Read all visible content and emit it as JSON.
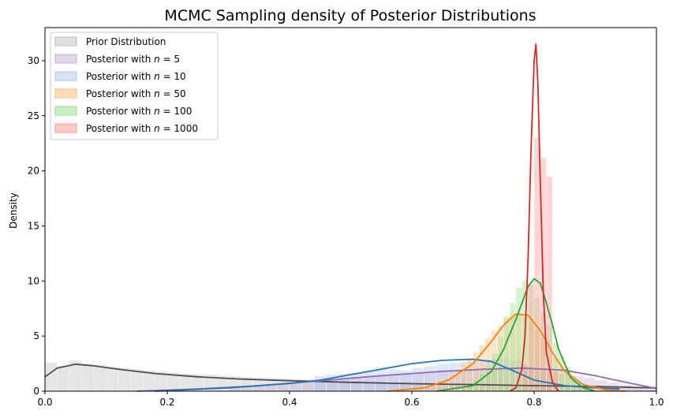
{
  "chart_data": {
    "type": "area",
    "title": "MCMC Sampling density of Posterior Distributions",
    "xlabel": "",
    "ylabel": "Density",
    "xlim": [
      0.0,
      1.0
    ],
    "ylim": [
      0,
      33
    ],
    "xticks": [
      "0.0",
      "0.2",
      "0.4",
      "0.6",
      "0.8",
      "1.0"
    ],
    "yticks": [
      "0",
      "5",
      "10",
      "15",
      "20",
      "25",
      "30"
    ],
    "legend_position": "top-left",
    "grid": false,
    "series": [
      {
        "name": "Prior Distribution",
        "color": "#4d4d4d",
        "hist_color": "#bfbfbf",
        "kde": [
          [
            0.0,
            1.3
          ],
          [
            0.02,
            2.1
          ],
          [
            0.05,
            2.45
          ],
          [
            0.08,
            2.3
          ],
          [
            0.12,
            2.0
          ],
          [
            0.18,
            1.6
          ],
          [
            0.25,
            1.3
          ],
          [
            0.32,
            1.1
          ],
          [
            0.4,
            0.95
          ],
          [
            0.5,
            0.8
          ],
          [
            0.6,
            0.68
          ],
          [
            0.7,
            0.6
          ],
          [
            0.8,
            0.5
          ],
          [
            0.9,
            0.42
          ],
          [
            1.0,
            0.3
          ]
        ],
        "hist": {
          "start": 0.0,
          "end": 1.0,
          "bins": 50,
          "heights": [
            2.6,
            2.3,
            2.8,
            2.5,
            2.4,
            2.2,
            2.1,
            2.0,
            1.9,
            1.8,
            1.7,
            1.6,
            1.55,
            1.5,
            1.4,
            1.35,
            1.3,
            1.25,
            1.2,
            1.15,
            1.1,
            1.05,
            1.0,
            0.98,
            0.95,
            0.92,
            0.9,
            0.87,
            0.85,
            0.82,
            0.8,
            0.78,
            0.76,
            0.74,
            0.72,
            0.7,
            0.68,
            0.66,
            0.64,
            0.62,
            0.6,
            0.58,
            0.56,
            0.54,
            0.52,
            0.5,
            0.48,
            0.45,
            0.4,
            0.35
          ]
        }
      },
      {
        "name": "Posterior with n = 5",
        "label_parts": [
          "Posterior with ",
          "n",
          " = 5"
        ],
        "color": "#9467bd",
        "hist_color": "#c5b0d5",
        "kde": [
          [
            0.15,
            0.0
          ],
          [
            0.25,
            0.2
          ],
          [
            0.35,
            0.5
          ],
          [
            0.45,
            0.95
          ],
          [
            0.55,
            1.4
          ],
          [
            0.65,
            1.8
          ],
          [
            0.72,
            2.0
          ],
          [
            0.78,
            2.1
          ],
          [
            0.85,
            1.9
          ],
          [
            0.9,
            1.4
          ],
          [
            0.95,
            0.8
          ],
          [
            1.0,
            0.25
          ]
        ],
        "hist": {
          "start": 0.3,
          "end": 1.0,
          "bins": 35,
          "heights": [
            0.3,
            0.4,
            0.5,
            0.55,
            0.7,
            0.8,
            0.9,
            0.95,
            1.1,
            1.2,
            1.3,
            1.35,
            1.4,
            1.5,
            1.6,
            1.7,
            1.8,
            1.9,
            1.95,
            2.0,
            2.1,
            2.05,
            2.1,
            2.15,
            2.0,
            1.9,
            1.8,
            1.6,
            1.4,
            1.2,
            1.0,
            0.8,
            0.6,
            0.4,
            0.2
          ]
        }
      },
      {
        "name": "Posterior with n = 10",
        "label_parts": [
          "Posterior with ",
          "n",
          " = 10"
        ],
        "color": "#1f77b4",
        "hist_color": "#aec7e8",
        "kde": [
          [
            0.18,
            0.0
          ],
          [
            0.3,
            0.3
          ],
          [
            0.4,
            0.7
          ],
          [
            0.45,
            1.0
          ],
          [
            0.5,
            1.5
          ],
          [
            0.55,
            2.0
          ],
          [
            0.6,
            2.5
          ],
          [
            0.65,
            2.8
          ],
          [
            0.7,
            2.9
          ],
          [
            0.73,
            2.7
          ],
          [
            0.76,
            2.0
          ],
          [
            0.8,
            1.0
          ],
          [
            0.85,
            0.5
          ],
          [
            0.9,
            0.3
          ],
          [
            0.94,
            0.2
          ]
        ],
        "hist": {
          "start": 0.44,
          "end": 0.94,
          "bins": 25,
          "heights": [
            1.4,
            1.5,
            1.6,
            1.7,
            1.8,
            2.2,
            2.0,
            1.9,
            2.1,
            2.3,
            2.5,
            2.6,
            2.7,
            2.8,
            2.9,
            3.0,
            2.8,
            2.2,
            1.5,
            0.9,
            0.6,
            0.4,
            0.3,
            0.25,
            0.2
          ]
        }
      },
      {
        "name": "Posterior with n = 50",
        "label_parts": [
          "Posterior with ",
          "n",
          " = 50"
        ],
        "color": "#ff7f0e",
        "hist_color": "#ffbb78",
        "kde": [
          [
            0.56,
            0.0
          ],
          [
            0.62,
            0.3
          ],
          [
            0.66,
            1.0
          ],
          [
            0.7,
            2.5
          ],
          [
            0.73,
            4.5
          ],
          [
            0.75,
            6.0
          ],
          [
            0.77,
            7.0
          ],
          [
            0.79,
            6.9
          ],
          [
            0.81,
            5.5
          ],
          [
            0.83,
            3.5
          ],
          [
            0.85,
            1.8
          ],
          [
            0.88,
            0.6
          ],
          [
            0.92,
            0.1
          ],
          [
            0.95,
            0.0
          ]
        ],
        "hist": {
          "start": 0.6,
          "end": 0.94,
          "bins": 34,
          "heights": [
            0.2,
            0.3,
            0.5,
            0.8,
            1.0,
            1.2,
            1.5,
            2.0,
            2.5,
            3.0,
            3.6,
            4.2,
            4.8,
            5.5,
            6.0,
            6.6,
            7.0,
            7.0,
            6.8,
            6.5,
            5.6,
            4.8,
            3.8,
            3.0,
            2.2,
            1.6,
            1.1,
            0.8,
            0.5,
            0.3,
            0.2,
            0.15,
            0.1,
            0.05
          ]
        }
      },
      {
        "name": "Posterior with n = 100",
        "label_parts": [
          "Posterior with ",
          "n",
          " = 100"
        ],
        "color": "#2ca02c",
        "hist_color": "#98df8a",
        "kde": [
          [
            0.64,
            0.0
          ],
          [
            0.7,
            0.5
          ],
          [
            0.73,
            1.8
          ],
          [
            0.75,
            3.8
          ],
          [
            0.77,
            6.5
          ],
          [
            0.79,
            9.5
          ],
          [
            0.8,
            10.2
          ],
          [
            0.81,
            9.8
          ],
          [
            0.82,
            8.0
          ],
          [
            0.83,
            6.0
          ],
          [
            0.84,
            3.8
          ],
          [
            0.86,
            1.2
          ],
          [
            0.88,
            0.3
          ],
          [
            0.9,
            0.0
          ]
        ],
        "hist": {
          "start": 0.68,
          "end": 0.9,
          "bins": 22,
          "heights": [
            0.3,
            0.6,
            1.0,
            1.6,
            2.4,
            3.5,
            5.0,
            6.8,
            8.0,
            9.4,
            10.0,
            9.6,
            8.5,
            7.2,
            6.0,
            4.4,
            3.2,
            2.2,
            1.4,
            0.8,
            0.4,
            0.2
          ]
        }
      },
      {
        "name": "Posterior with n = 1000",
        "label_parts": [
          "Posterior with ",
          "n",
          " = 1000"
        ],
        "color": "#d62728",
        "hist_color": "#ff9896",
        "kde": [
          [
            0.76,
            0.0
          ],
          [
            0.77,
            0.3
          ],
          [
            0.78,
            2.0
          ],
          [
            0.785,
            5.0
          ],
          [
            0.79,
            12.0
          ],
          [
            0.795,
            22.0
          ],
          [
            0.8,
            30.0
          ],
          [
            0.803,
            31.5
          ],
          [
            0.806,
            28.0
          ],
          [
            0.81,
            19.0
          ],
          [
            0.815,
            9.0
          ],
          [
            0.82,
            3.5
          ],
          [
            0.83,
            0.8
          ],
          [
            0.84,
            0.0
          ]
        ],
        "hist": {
          "start": 0.78,
          "end": 0.84,
          "bins": 6,
          "heights": [
            2.5,
            9.8,
            23.0,
            21.2,
            19.5,
            1.8
          ]
        }
      }
    ]
  }
}
